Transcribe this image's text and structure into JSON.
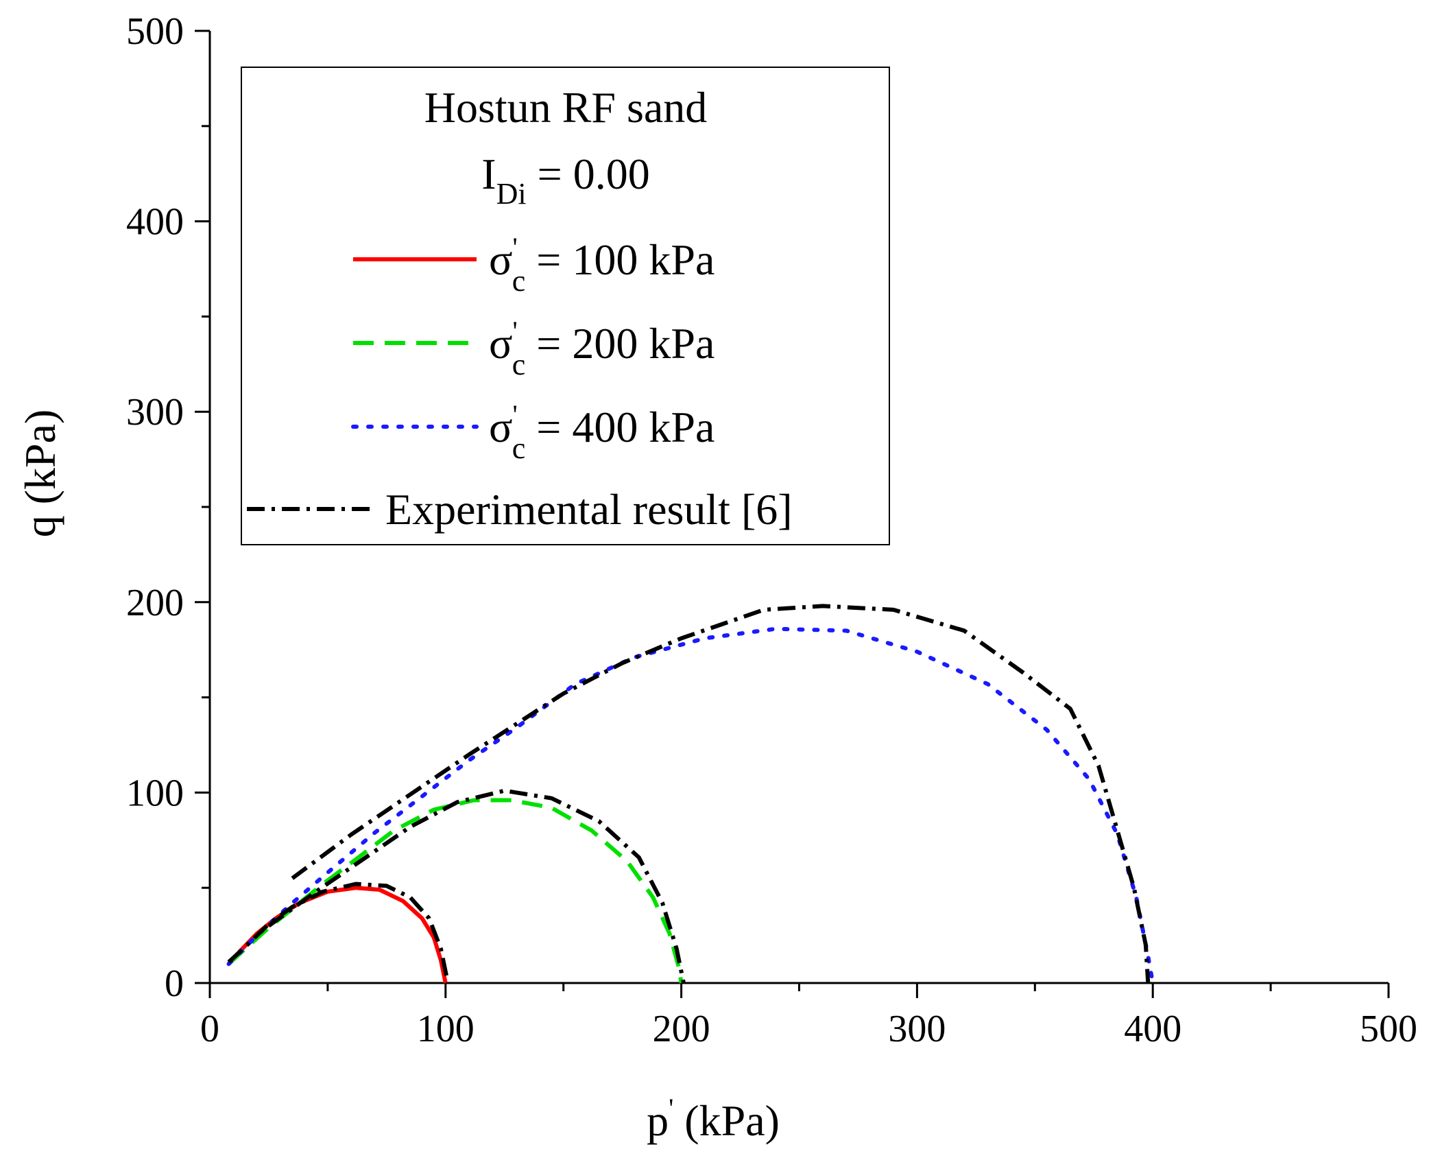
{
  "chart_data": {
    "type": "line",
    "xlabel": {
      "main": "p",
      "prime": "'",
      "unit": " (kPa)"
    },
    "ylabel": "q (kPa)",
    "xlim": [
      0,
      500
    ],
    "ylim": [
      0,
      500
    ],
    "x_ticks": [
      0,
      100,
      200,
      300,
      400,
      500
    ],
    "y_ticks": [
      0,
      100,
      200,
      300,
      400,
      500
    ],
    "x_minor_step": 50,
    "y_minor_step": 50,
    "grid": false,
    "legend": {
      "position": "top-left",
      "title_line1": "Hostun RF sand",
      "title_line2": {
        "main": "I",
        "sub": "Di",
        "rest": " = 0.00"
      },
      "entries": [
        {
          "symbol": "σ",
          "prime": "'",
          "sub": "c",
          "rest": " = 100 kPa"
        },
        {
          "symbol": "σ",
          "prime": "'",
          "sub": "c",
          "rest": " = 200 kPa"
        },
        {
          "symbol": "σ",
          "prime": "'",
          "sub": "c",
          "rest": " = 400 kPa"
        },
        {
          "text": "Experimental result [6]"
        }
      ]
    },
    "series": [
      {
        "name": "σ'c = 100 kPa",
        "color": "#ff0000",
        "style": "solid",
        "x": [
          8,
          13,
          20,
          28,
          38,
          50,
          62,
          72,
          82,
          90,
          95,
          98,
          100
        ],
        "y": [
          10,
          17,
          26,
          34,
          42,
          48,
          50,
          49,
          43,
          34,
          24,
          12,
          0
        ]
      },
      {
        "name": "σ'c = 200 kPa",
        "color": "#00e000",
        "style": "dashed",
        "x": [
          8,
          15,
          25,
          35,
          48,
          62,
          78,
          95,
          112,
          128,
          145,
          162,
          177,
          188,
          195,
          199,
          200
        ],
        "y": [
          10,
          18,
          29,
          39,
          52,
          65,
          80,
          91,
          96,
          96,
          92,
          80,
          64,
          45,
          26,
          8,
          0
        ]
      },
      {
        "name": "σ'c = 400 kPa",
        "color": "#1a1aff",
        "style": "dotted",
        "x": [
          8,
          20,
          35,
          50,
          70,
          90,
          110,
          130,
          155,
          180,
          210,
          240,
          270,
          300,
          330,
          355,
          373,
          385,
          393,
          398,
          400
        ],
        "y": [
          10,
          25,
          42,
          58,
          79,
          98,
          117,
          134,
          157,
          171,
          181,
          186,
          185,
          174,
          157,
          133,
          107,
          78,
          45,
          14,
          0
        ]
      },
      {
        "name": "Experimental result [6] (σ'c = 100 kPa)",
        "color": "#000000",
        "style": "dashdot",
        "x": [
          8,
          15,
          25,
          35,
          48,
          62,
          75,
          85,
          93,
          98,
          100,
          101
        ],
        "y": [
          11,
          19,
          31,
          40,
          48,
          52,
          51,
          45,
          34,
          18,
          6,
          0
        ]
      },
      {
        "name": "Experimental result [6] (σ'c = 200 kPa)",
        "color": "#000000",
        "style": "dashdot",
        "x": [
          25,
          45,
          65,
          85,
          105,
          125,
          145,
          165,
          182,
          192,
          198,
          201
        ],
        "y": [
          30,
          48,
          65,
          82,
          95,
          101,
          97,
          85,
          66,
          42,
          18,
          0
        ]
      },
      {
        "name": "Experimental result [6] (σ'c = 400 kPa)",
        "color": "#000000",
        "style": "dashdot",
        "x": [
          35,
          60,
          85,
          110,
          130,
          150,
          175,
          200,
          235,
          260,
          290,
          320,
          345,
          365,
          377,
          385,
          392,
          397,
          398
        ],
        "y": [
          55,
          78,
          99,
          120,
          136,
          152,
          168,
          181,
          196,
          198,
          196,
          185,
          163,
          144,
          114,
          80,
          50,
          20,
          0
        ]
      }
    ]
  }
}
